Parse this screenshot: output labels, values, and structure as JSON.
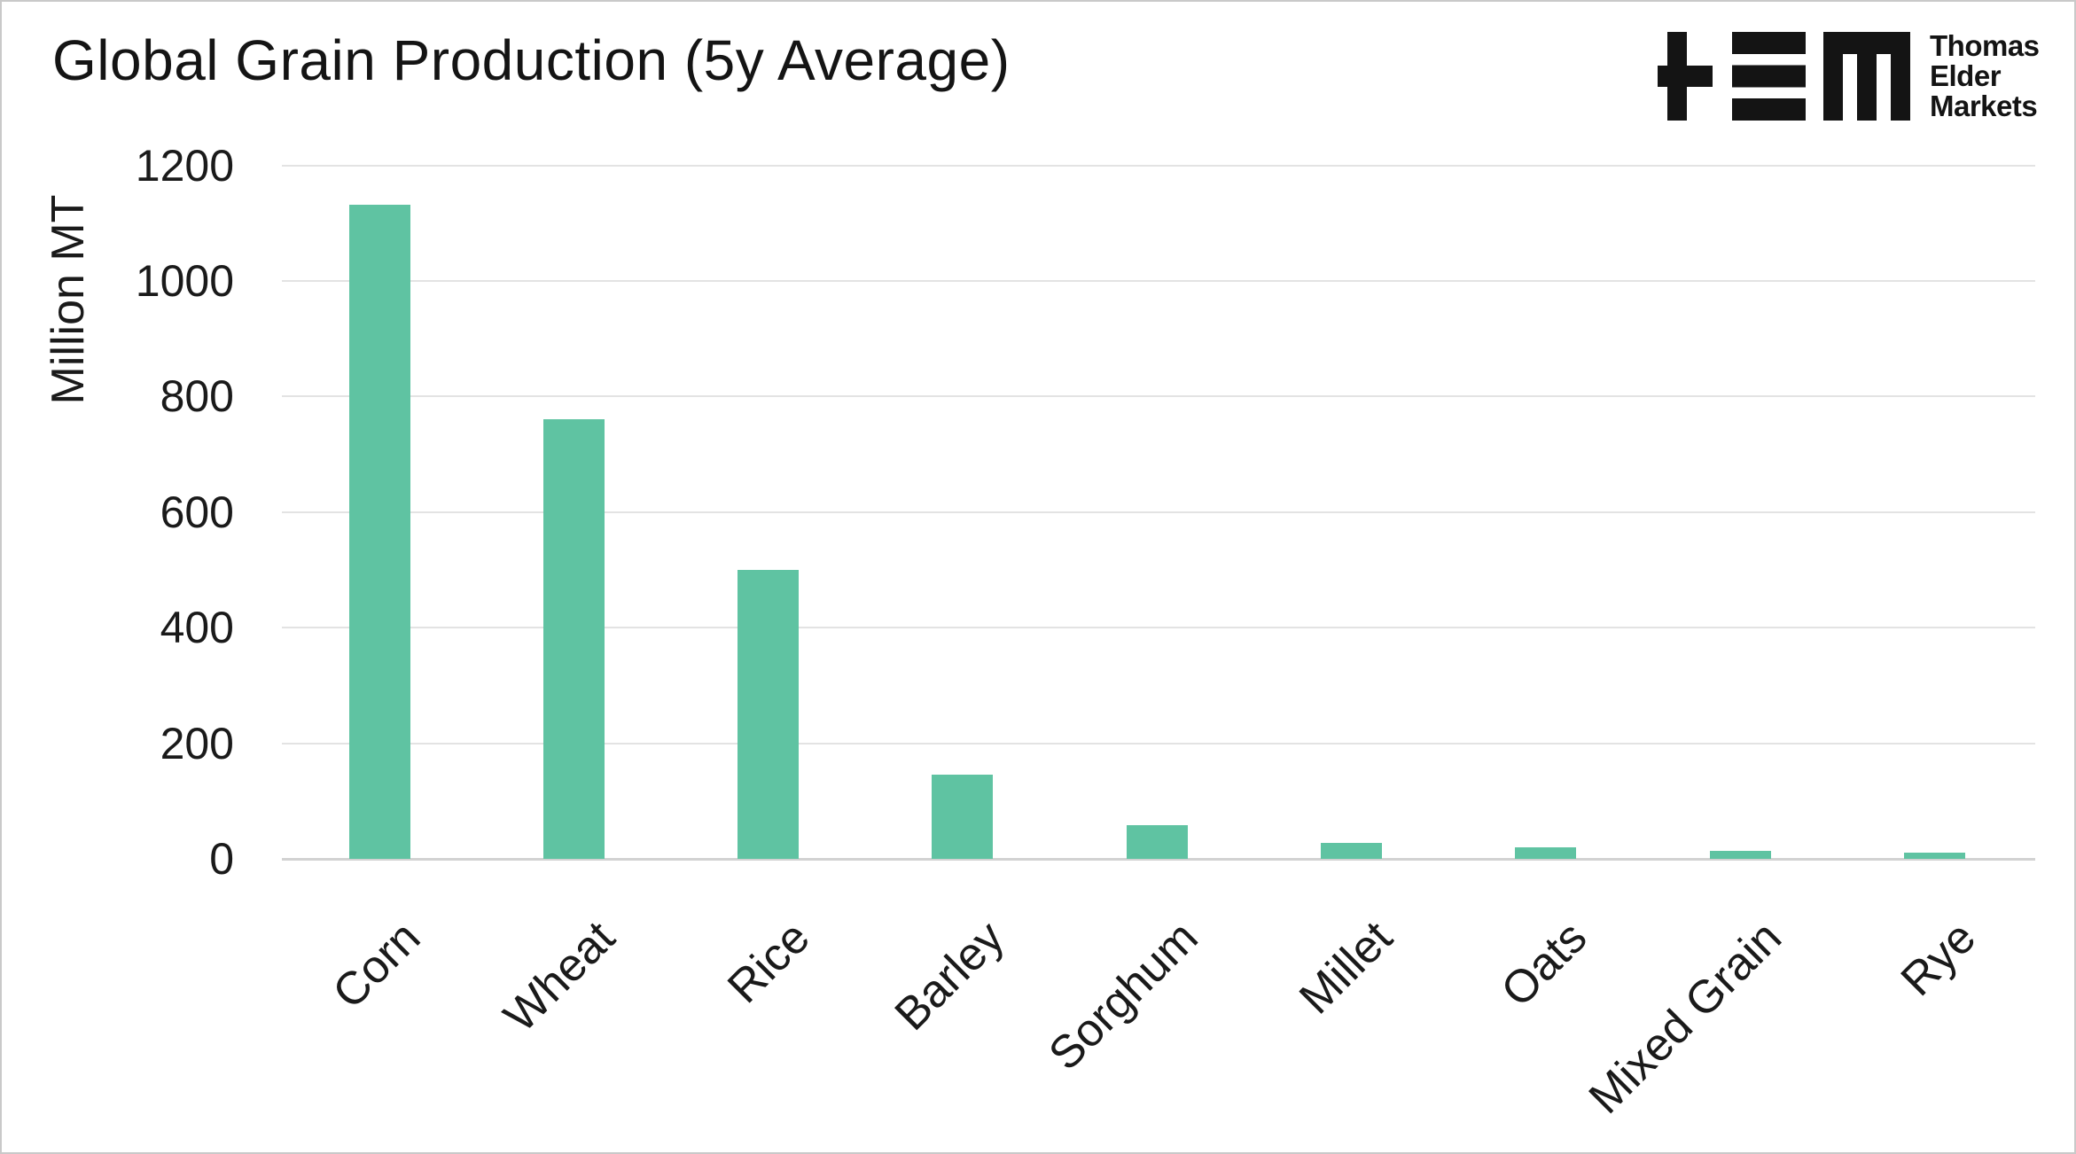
{
  "header": {
    "title": "Global Grain Production (5y Average)"
  },
  "logo": {
    "mark": "tem-logomark",
    "lines": [
      "Thomas",
      "Elder",
      "Markets"
    ]
  },
  "chart_data": {
    "type": "bar",
    "title": "Global Grain Production (5y Average)",
    "categories": [
      "Corn",
      "Wheat",
      "Rice",
      "Barley",
      "Sorghum",
      "Millet",
      "Oats",
      "Mixed Grain",
      "Rye"
    ],
    "values": [
      1132,
      761,
      500,
      146,
      58,
      28,
      20,
      14,
      11
    ],
    "xlabel": "",
    "ylabel": "Million MT",
    "yticks": [
      0,
      200,
      400,
      600,
      800,
      1000,
      1200
    ],
    "ylim": [
      0,
      1200
    ],
    "grid": "horizontal",
    "legend": "none",
    "bar_color": "#5fc3a2",
    "gridline_color": "#e3e3e3",
    "baseline_color": "#d2d2d2",
    "text_color": "#1a1a1a"
  }
}
